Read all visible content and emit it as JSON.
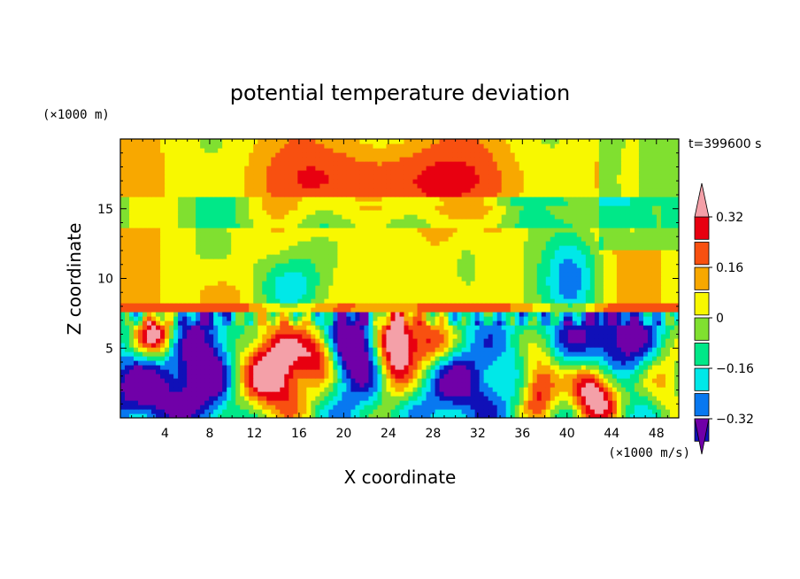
{
  "chart_data": {
    "type": "heatmap",
    "title": "potential temperature deviation",
    "xlabel": "X coordinate",
    "ylabel": "Z coordinate",
    "x_unit": "(×1000 m/s)",
    "y_unit": "(×1000 m)",
    "time_label": "t=399600 s",
    "xlim": [
      0,
      50
    ],
    "ylim": [
      0,
      20
    ],
    "x_ticks": [
      4,
      8,
      12,
      16,
      20,
      24,
      28,
      32,
      36,
      40,
      44,
      48
    ],
    "y_ticks": [
      5,
      10,
      15
    ],
    "colorbar": {
      "levels": [
        -0.4,
        -0.32,
        -0.24,
        -0.16,
        -0.08,
        0,
        0.08,
        0.16,
        0.24,
        0.32,
        0.4
      ],
      "labels": [
        "0.32",
        "0.16",
        "0",
        "−0.16",
        "−0.32"
      ],
      "label_values": [
        0.32,
        0.16,
        0,
        -0.16,
        -0.32
      ],
      "colors": [
        "#7000a8",
        "#1010b8",
        "#0878f0",
        "#00e8e8",
        "#00e888",
        "#80e030",
        "#f8f800",
        "#f8a800",
        "#f85010",
        "#e80010",
        "#f4a0a8"
      ],
      "extend": "both"
    }
  }
}
